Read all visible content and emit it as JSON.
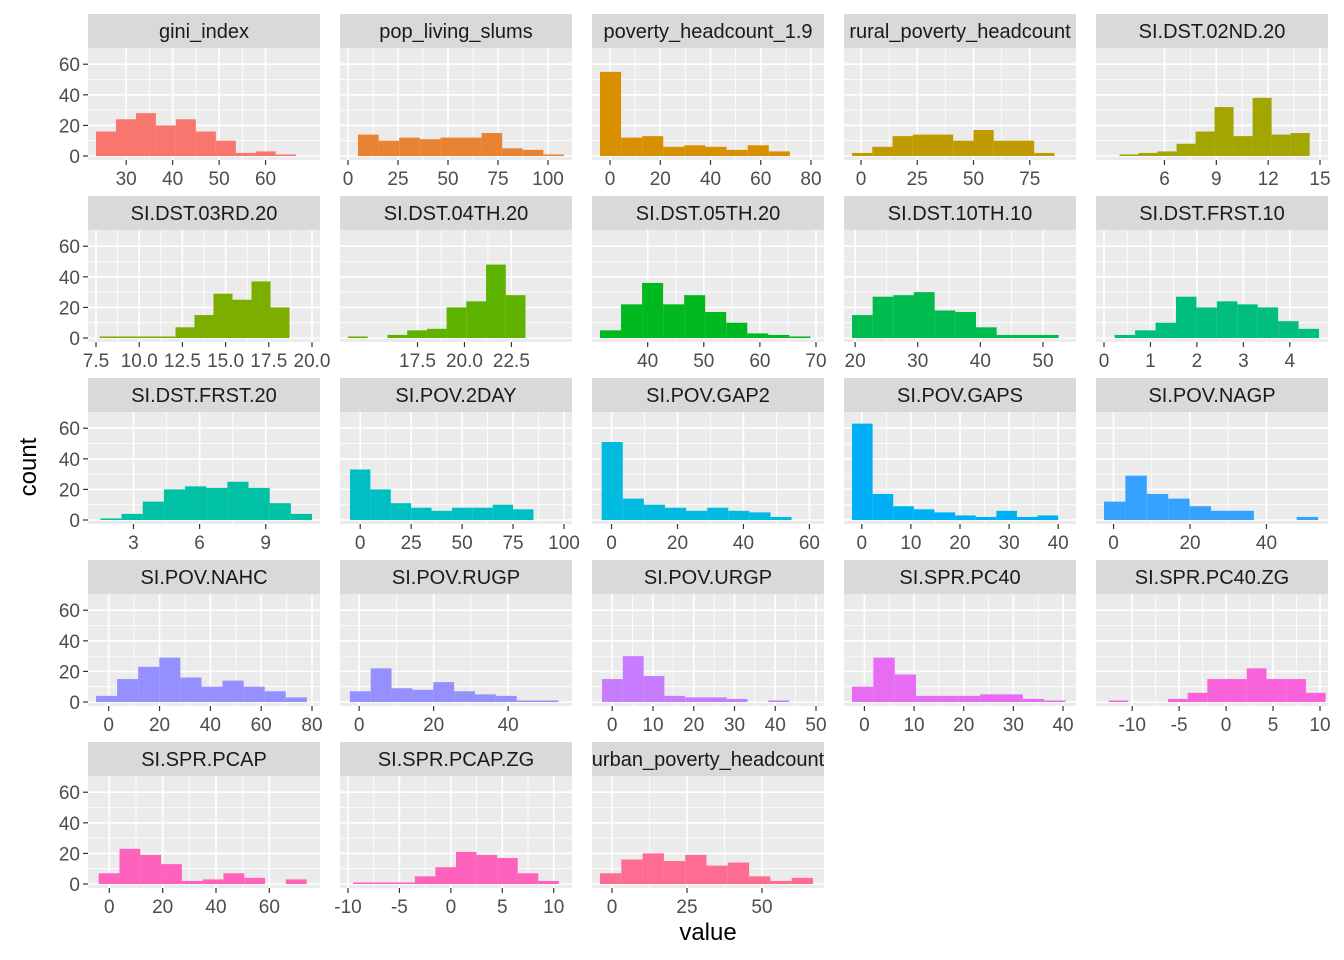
{
  "figure": {
    "xlabel": "value",
    "ylabel": "count",
    "y_ticks": [
      0,
      20,
      40,
      60
    ],
    "ylim": [
      0,
      68
    ],
    "panel_background": "#EBEBEB",
    "grid_color": "#FFFFFF",
    "strip_background": "#D9D9D9"
  },
  "chart_data": [
    {
      "type": "bar",
      "title": "gini_index",
      "color": "#F8766D",
      "xlim": [
        23.5,
        70
      ],
      "x_ticks": [
        {
          "value": 30,
          "label": "30"
        },
        {
          "value": 40,
          "label": "40"
        },
        {
          "value": 50,
          "label": "50"
        },
        {
          "value": 60,
          "label": "60"
        }
      ],
      "bin_start": 23.5,
      "bin_width": 4.3,
      "counts": [
        16,
        24,
        28,
        20,
        24,
        16,
        10,
        2,
        3,
        1
      ]
    },
    {
      "type": "bar",
      "title": "pop_living_slums",
      "color": "#EA8331",
      "xlim": [
        0,
        108
      ],
      "x_ticks": [
        {
          "value": 0,
          "label": "0"
        },
        {
          "value": 25,
          "label": "25"
        },
        {
          "value": 50,
          "label": "50"
        },
        {
          "value": 75,
          "label": "75"
        },
        {
          "value": 100,
          "label": "100"
        }
      ],
      "bin_start": 5,
      "bin_width": 10.3,
      "counts": [
        14,
        10,
        12,
        11,
        12,
        12,
        15,
        5,
        4,
        1
      ]
    },
    {
      "type": "bar",
      "title": "poverty_headcount_1.9",
      "color": "#D89000",
      "xlim": [
        -4,
        82
      ],
      "x_ticks": [
        {
          "value": 0,
          "label": "0"
        },
        {
          "value": 20,
          "label": "20"
        },
        {
          "value": 40,
          "label": "40"
        },
        {
          "value": 60,
          "label": "60"
        },
        {
          "value": 80,
          "label": "80"
        }
      ],
      "bin_start": -4,
      "bin_width": 8.4,
      "counts": [
        55,
        12,
        13,
        6,
        7,
        6,
        4,
        7,
        3
      ]
    },
    {
      "type": "bar",
      "title": "rural_poverty_headcount",
      "color": "#C09B00",
      "xlim": [
        -4,
        92
      ],
      "x_ticks": [
        {
          "value": 0,
          "label": "0"
        },
        {
          "value": 25,
          "label": "25"
        },
        {
          "value": 50,
          "label": "50"
        },
        {
          "value": 75,
          "label": "75"
        }
      ],
      "bin_start": -4,
      "bin_width": 9,
      "counts": [
        2,
        6,
        13,
        14,
        14,
        10,
        17,
        10,
        10,
        2
      ]
    },
    {
      "type": "bar",
      "title": "SI.DST.02ND.20",
      "color": "#A3A500",
      "xlim": [
        2.5,
        15
      ],
      "x_ticks": [
        {
          "value": 6,
          "label": "6"
        },
        {
          "value": 9,
          "label": "9"
        },
        {
          "value": 12,
          "label": "12"
        },
        {
          "value": 15,
          "label": "15"
        }
      ],
      "bin_start": 3.4,
      "bin_width": 1.1,
      "counts": [
        1,
        2,
        3,
        8,
        16,
        32,
        13,
        38,
        14,
        15
      ]
    },
    {
      "type": "bar",
      "title": "SI.DST.03RD.20",
      "color": "#7CAE00",
      "xlim": [
        7.5,
        20
      ],
      "x_ticks": [
        {
          "value": 7.5,
          "label": "7.5"
        },
        {
          "value": 10,
          "label": "10.0"
        },
        {
          "value": 12.5,
          "label": "12.5"
        },
        {
          "value": 15,
          "label": "15.0"
        },
        {
          "value": 17.5,
          "label": "17.5"
        },
        {
          "value": 20,
          "label": "20.0"
        }
      ],
      "bin_start": 7.7,
      "bin_width": 1.1,
      "counts": [
        1,
        1,
        1,
        1,
        7,
        15,
        29,
        25,
        37,
        20
      ]
    },
    {
      "type": "bar",
      "title": "SI.DST.04TH.20",
      "color": "#5EB300",
      "xlim": [
        13.8,
        25.3
      ],
      "x_ticks": [
        {
          "value": 17.5,
          "label": "17.5"
        },
        {
          "value": 20,
          "label": "20.0"
        },
        {
          "value": 22.5,
          "label": "22.5"
        }
      ],
      "bin_start": 13.8,
      "bin_width": 1.05,
      "counts": [
        1,
        0,
        2,
        5,
        6,
        20,
        24,
        48,
        28,
        0
      ]
    },
    {
      "type": "bar",
      "title": "SI.DST.05TH.20",
      "color": "#00B81F",
      "xlim": [
        31.5,
        70
      ],
      "x_ticks": [
        {
          "value": 40,
          "label": "40"
        },
        {
          "value": 50,
          "label": "50"
        },
        {
          "value": 60,
          "label": "60"
        },
        {
          "value": 70,
          "label": "70"
        }
      ],
      "bin_start": 31.5,
      "bin_width": 3.75,
      "counts": [
        5,
        22,
        36,
        22,
        28,
        17,
        10,
        3,
        2,
        1
      ]
    },
    {
      "type": "bar",
      "title": "SI.DST.10TH.10",
      "color": "#00BB4E",
      "xlim": [
        19.5,
        54
      ],
      "x_ticks": [
        {
          "value": 20,
          "label": "20"
        },
        {
          "value": 30,
          "label": "30"
        },
        {
          "value": 40,
          "label": "40"
        },
        {
          "value": 50,
          "label": "50"
        }
      ],
      "bin_start": 19.5,
      "bin_width": 3.3,
      "counts": [
        15,
        27,
        28,
        30,
        18,
        17,
        7,
        2,
        2,
        2
      ]
    },
    {
      "type": "bar",
      "title": "SI.DST.FRST.10",
      "color": "#00BF7D",
      "xlim": [
        0,
        4.65
      ],
      "x_ticks": [
        {
          "value": 0,
          "label": "0"
        },
        {
          "value": 1,
          "label": "1"
        },
        {
          "value": 2,
          "label": "2"
        },
        {
          "value": 3,
          "label": "3"
        },
        {
          "value": 4,
          "label": "4"
        }
      ],
      "bin_start": 0.23,
      "bin_width": 0.44,
      "counts": [
        2,
        5,
        10,
        27,
        20,
        24,
        22,
        20,
        11,
        6
      ]
    },
    {
      "type": "bar",
      "title": "SI.DST.FRST.20",
      "color": "#00C1A3",
      "xlim": [
        1.3,
        11.1
      ],
      "x_ticks": [
        {
          "value": 3,
          "label": "3"
        },
        {
          "value": 6,
          "label": "6"
        },
        {
          "value": 9,
          "label": "9"
        }
      ],
      "bin_start": 1.5,
      "bin_width": 0.96,
      "counts": [
        1,
        4,
        12,
        20,
        22,
        21,
        25,
        21,
        11,
        4
      ]
    },
    {
      "type": "bar",
      "title": "SI.POV.2DAY",
      "color": "#00BFC4",
      "xlim": [
        -6,
        100
      ],
      "x_ticks": [
        {
          "value": 0,
          "label": "0"
        },
        {
          "value": 25,
          "label": "25"
        },
        {
          "value": 50,
          "label": "50"
        },
        {
          "value": 75,
          "label": "75"
        },
        {
          "value": 100,
          "label": "100"
        }
      ],
      "bin_start": -5,
      "bin_width": 10,
      "counts": [
        33,
        20,
        11,
        8,
        6,
        8,
        8,
        10,
        7
      ]
    },
    {
      "type": "bar",
      "title": "SI.POV.GAP2",
      "color": "#00BAE0",
      "xlim": [
        -3.5,
        62
      ],
      "x_ticks": [
        {
          "value": 0,
          "label": "0"
        },
        {
          "value": 20,
          "label": "20"
        },
        {
          "value": 40,
          "label": "40"
        },
        {
          "value": 60,
          "label": "60"
        }
      ],
      "bin_start": -3,
      "bin_width": 6.4,
      "counts": [
        51,
        14,
        10,
        8,
        6,
        8,
        6,
        5,
        2
      ]
    },
    {
      "type": "bar",
      "title": "SI.POV.GAPS",
      "color": "#00B0F6",
      "xlim": [
        -2,
        42
      ],
      "x_ticks": [
        {
          "value": 0,
          "label": "0"
        },
        {
          "value": 10,
          "label": "10"
        },
        {
          "value": 20,
          "label": "20"
        },
        {
          "value": 30,
          "label": "30"
        },
        {
          "value": 40,
          "label": "40"
        }
      ],
      "bin_start": -2,
      "bin_width": 4.2,
      "counts": [
        63,
        17,
        9,
        7,
        5,
        3,
        2,
        6,
        2,
        3
      ]
    },
    {
      "type": "bar",
      "title": "SI.POV.NAGP",
      "color": "#35A2FF",
      "xlim": [
        -2.5,
        54
      ],
      "x_ticks": [
        {
          "value": 0,
          "label": "0"
        },
        {
          "value": 20,
          "label": "20"
        },
        {
          "value": 40,
          "label": "40"
        }
      ],
      "bin_start": -2.5,
      "bin_width": 5.6,
      "counts": [
        12,
        29,
        17,
        14,
        9,
        6,
        6,
        0,
        0,
        2
      ]
    },
    {
      "type": "bar",
      "title": "SI.POV.NAHC",
      "color": "#9590FF",
      "xlim": [
        -5,
        80
      ],
      "x_ticks": [
        {
          "value": 0,
          "label": "0"
        },
        {
          "value": 20,
          "label": "20"
        },
        {
          "value": 40,
          "label": "40"
        },
        {
          "value": 60,
          "label": "60"
        },
        {
          "value": 80,
          "label": "80"
        }
      ],
      "bin_start": -5,
      "bin_width": 8.3,
      "counts": [
        4,
        15,
        23,
        29,
        16,
        10,
        14,
        10,
        7,
        3
      ]
    },
    {
      "type": "bar",
      "title": "SI.POV.RUGP",
      "color": "#9590FF",
      "xlim": [
        -3,
        55
      ],
      "x_ticks": [
        {
          "value": 0,
          "label": "0"
        },
        {
          "value": 20,
          "label": "20"
        },
        {
          "value": 40,
          "label": "40"
        }
      ],
      "bin_start": -2.5,
      "bin_width": 5.6,
      "counts": [
        7,
        22,
        9,
        8,
        13,
        7,
        5,
        4,
        1,
        1
      ]
    },
    {
      "type": "bar",
      "title": "SI.POV.URGP",
      "color": "#C77CFF",
      "xlim": [
        -3,
        50
      ],
      "x_ticks": [
        {
          "value": 0,
          "label": "0"
        },
        {
          "value": 10,
          "label": "10"
        },
        {
          "value": 20,
          "label": "20"
        },
        {
          "value": 30,
          "label": "30"
        },
        {
          "value": 40,
          "label": "40"
        },
        {
          "value": 50,
          "label": "50"
        }
      ],
      "bin_start": -2.5,
      "bin_width": 5.1,
      "counts": [
        15,
        30,
        17,
        4,
        3,
        3,
        2,
        0,
        1
      ]
    },
    {
      "type": "bar",
      "title": "SI.SPR.PC40",
      "color": "#E76BF3",
      "xlim": [
        -2.5,
        41
      ],
      "x_ticks": [
        {
          "value": 0,
          "label": "0"
        },
        {
          "value": 10,
          "label": "10"
        },
        {
          "value": 20,
          "label": "20"
        },
        {
          "value": 30,
          "label": "30"
        },
        {
          "value": 40,
          "label": "40"
        }
      ],
      "bin_start": -2.5,
      "bin_width": 4.3,
      "counts": [
        10,
        29,
        18,
        4,
        4,
        4,
        5,
        5,
        2,
        1
      ]
    },
    {
      "type": "bar",
      "title": "SI.SPR.PC40.ZG",
      "color": "#FA62DB",
      "xlim": [
        -13,
        10
      ],
      "x_ticks": [
        {
          "value": -10,
          "label": "-10"
        },
        {
          "value": -5,
          "label": "-5"
        },
        {
          "value": 0,
          "label": "0"
        },
        {
          "value": 5,
          "label": "5"
        },
        {
          "value": 10,
          "label": "10"
        }
      ],
      "bin_start": -12.5,
      "bin_width": 2.1,
      "counts": [
        1,
        0,
        0,
        2,
        6,
        15,
        15,
        22,
        15,
        15,
        6
      ]
    },
    {
      "type": "bar",
      "title": "SI.SPR.PCAP",
      "color": "#FF62BC",
      "xlim": [
        -5,
        76
      ],
      "x_ticks": [
        {
          "value": 0,
          "label": "0"
        },
        {
          "value": 20,
          "label": "20"
        },
        {
          "value": 40,
          "label": "40"
        },
        {
          "value": 60,
          "label": "60"
        }
      ],
      "bin_start": -4,
      "bin_width": 7.8,
      "counts": [
        7,
        23,
        19,
        13,
        2,
        3,
        7,
        4,
        0,
        3
      ]
    },
    {
      "type": "bar",
      "title": "SI.SPR.PCAP.ZG",
      "color": "#FF62BC",
      "xlim": [
        -10,
        11
      ],
      "x_ticks": [
        {
          "value": -10,
          "label": "-10"
        },
        {
          "value": -5,
          "label": "-5"
        },
        {
          "value": 0,
          "label": "0"
        },
        {
          "value": 5,
          "label": "5"
        },
        {
          "value": 10,
          "label": "10"
        }
      ],
      "bin_start": -9.5,
      "bin_width": 2,
      "counts": [
        1,
        1,
        1,
        5,
        11,
        21,
        19,
        17,
        7,
        2,
        0
      ]
    },
    {
      "type": "bar",
      "title": "urban_poverty_headcount",
      "color": "#FF6C91",
      "xlim": [
        -4,
        68
      ],
      "x_ticks": [
        {
          "value": 0,
          "label": "0"
        },
        {
          "value": 25,
          "label": "25"
        },
        {
          "value": 50,
          "label": "50"
        }
      ],
      "bin_start": -4,
      "bin_width": 7.1,
      "counts": [
        7,
        16,
        20,
        15,
        19,
        12,
        14,
        5,
        2,
        4
      ]
    }
  ]
}
